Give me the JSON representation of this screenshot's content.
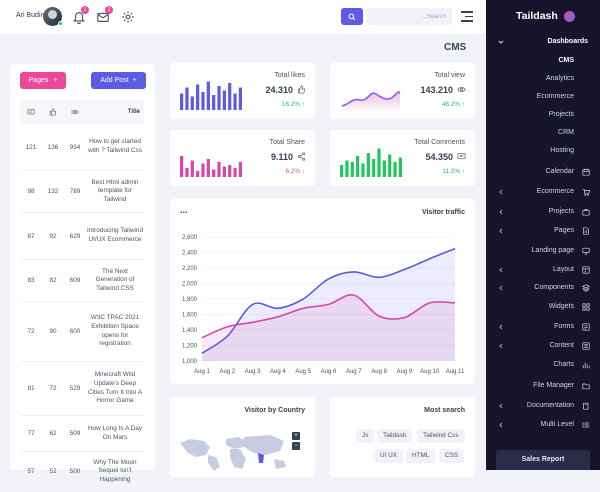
{
  "header": {
    "user_name": "Ari Budin",
    "notifications_count": "1",
    "messages_count": "2",
    "search_placeholder": "...Search"
  },
  "page_title": "CMS",
  "posts": {
    "pages_label": "Pages",
    "add_post_label": "Add Post",
    "title_header": "Title",
    "rows": [
      {
        "comments": "121",
        "likes": "136",
        "views": "934",
        "title": "How to get started with ? Tailwind Css"
      },
      {
        "comments": "98",
        "likes": "132",
        "views": "789",
        "title": "Best Html admin template for Tailwind"
      },
      {
        "comments": "87",
        "likes": "92",
        "views": "629",
        "title": "Introducing Tailwind UI/UX Ecommerce"
      },
      {
        "comments": "83",
        "likes": "82",
        "views": "609",
        "title": "The Next Generation of Tailwind CSS"
      },
      {
        "comments": "72",
        "likes": "90",
        "views": "600",
        "title": "W3C TPAC 2021 Exhibition Space opens for registration"
      },
      {
        "comments": "81",
        "likes": "72",
        "views": "529",
        "title": "Minecraft Wild Update's Deep Cities Turn It Into A Horror Game"
      },
      {
        "comments": "77",
        "likes": "62",
        "views": "509",
        "title": "How Long Is A Day On Mars"
      },
      {
        "comments": "57",
        "likes": "52",
        "views": "500",
        "title": "Why The Moon Sequel Isn't Happening"
      }
    ]
  },
  "stats": {
    "likes": {
      "title": "Total likes",
      "value": "24.310",
      "change": "16.2% ↑",
      "color": "#5b5be6",
      "bars": [
        0.55,
        0.75,
        0.45,
        0.85,
        0.6,
        0.95,
        0.5,
        0.8,
        0.65,
        0.9,
        0.55,
        0.75
      ]
    },
    "views": {
      "title": "Total view",
      "value": "143.210",
      "change": "46.2% ↑",
      "color": "#8b5cf6"
    },
    "share": {
      "title": "Total Share",
      "value": "9.110",
      "change": "6.2% ↓",
      "color": "#d946a8",
      "bars": [
        0.7,
        0.3,
        0.55,
        0.2,
        0.45,
        0.6,
        0.25,
        0.5,
        0.35,
        0.4,
        0.3,
        0.5
      ]
    },
    "comments": {
      "title": "Total Comments",
      "value": "54.350",
      "change": "11.2% ↑",
      "color": "#22c55e",
      "bars": [
        0.4,
        0.55,
        0.5,
        0.7,
        0.45,
        0.8,
        0.6,
        0.95,
        0.55,
        0.75,
        0.5,
        0.65
      ]
    },
    "up_color": "#22c55e",
    "down_color": "#ec4899"
  },
  "traffic": {
    "title": "Visitor traffic",
    "menu_label": "..."
  },
  "chart_data": {
    "type": "area",
    "title": "Visitor traffic",
    "categories": [
      "Aug 1",
      "Aug 2",
      "Aug 3",
      "Aug 4",
      "Aug 5",
      "Aug 6",
      "Aug 7",
      "Aug 8",
      "Aug 9",
      "Aug 10",
      "Aug 11"
    ],
    "ylim": [
      1000,
      2600
    ],
    "yticks": [
      "1,000",
      "1,200",
      "1,400",
      "1,600",
      "1,800",
      "2,000",
      "2,200",
      "2,400",
      "2,600"
    ],
    "series": [
      {
        "color": "#5b5be6",
        "values": [
          1100,
          1320,
          1730,
          1680,
          1800,
          2060,
          2150,
          2080,
          2180,
          2320,
          2450
        ]
      },
      {
        "color": "#d946a8",
        "values": [
          1300,
          1440,
          1500,
          1570,
          1680,
          1730,
          1850,
          1580,
          1560,
          1750,
          1750
        ]
      }
    ]
  },
  "visitors_country": {
    "title": "Visitor by Country",
    "zoom_in": "+",
    "zoom_out": "−"
  },
  "most_search": {
    "title": "Most search",
    "tags": [
      "Js",
      "Taildash",
      "Tailwind Css",
      "UI UX",
      "HTML",
      "CSS"
    ]
  },
  "sidebar": {
    "brand": "Taildash",
    "items": [
      {
        "label": "Dashboards",
        "type": "group-open"
      },
      {
        "label": "CMS",
        "type": "sub-active"
      },
      {
        "label": "Analytics",
        "type": "sub"
      },
      {
        "label": "Ecommerce",
        "type": "sub"
      },
      {
        "label": "Projects",
        "type": "sub"
      },
      {
        "label": "CRM",
        "type": "sub"
      },
      {
        "label": "Hosting",
        "type": "sub"
      },
      {
        "label": "Calendar",
        "type": "link",
        "icon": "calendar-icon"
      },
      {
        "label": "Ecommerce",
        "type": "group",
        "icon": "cart-icon"
      },
      {
        "label": "Projects",
        "type": "group",
        "icon": "briefcase-icon"
      },
      {
        "label": "Pages",
        "type": "group",
        "icon": "file-icon"
      },
      {
        "label": "Landing page",
        "type": "link",
        "icon": "monitor-icon"
      },
      {
        "label": "Layout",
        "type": "group",
        "icon": "layout-icon"
      },
      {
        "label": "Components",
        "type": "group",
        "icon": "layers-icon"
      },
      {
        "label": "Widgets",
        "type": "link",
        "icon": "widgets-icon"
      },
      {
        "label": "Forms",
        "type": "group",
        "icon": "forms-icon"
      },
      {
        "label": "Content",
        "type": "group",
        "icon": "content-icon"
      },
      {
        "label": "Charts",
        "type": "link",
        "icon": "chart-icon"
      },
      {
        "label": "File Manager",
        "type": "link",
        "icon": "folder-icon"
      },
      {
        "label": "Documentation",
        "type": "group",
        "icon": "book-icon"
      },
      {
        "label": "Multi Level",
        "type": "group",
        "icon": "list-icon"
      }
    ],
    "sales_report": "Sales Report"
  }
}
